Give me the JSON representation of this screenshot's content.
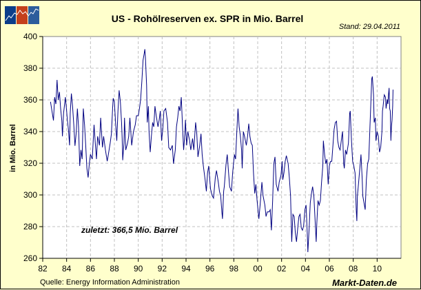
{
  "chart_data": {
    "type": "line",
    "title": "US - Rohölreserven ex. SPR in Mio. Barrel",
    "subtitle": "Stand: 29.04.2011",
    "ylabel": "in Mio. Barrel",
    "xlabel": "",
    "ylim": [
      260,
      400
    ],
    "xlim": [
      1982,
      2012
    ],
    "grid": true,
    "yticks": [
      260,
      280,
      300,
      320,
      340,
      360,
      380,
      400
    ],
    "xticks": [
      {
        "value": 1982,
        "label": "82"
      },
      {
        "value": 1984,
        "label": "84"
      },
      {
        "value": 1986,
        "label": "86"
      },
      {
        "value": 1988,
        "label": "88"
      },
      {
        "value": 1990,
        "label": "90"
      },
      {
        "value": 1992,
        "label": "92"
      },
      {
        "value": 1994,
        "label": "94"
      },
      {
        "value": 1996,
        "label": "96"
      },
      {
        "value": 1998,
        "label": "98"
      },
      {
        "value": 2000,
        "label": "00"
      },
      {
        "value": 2002,
        "label": "02"
      },
      {
        "value": 2004,
        "label": "04"
      },
      {
        "value": 2006,
        "label": "06"
      },
      {
        "value": 2008,
        "label": "08"
      },
      {
        "value": 2010,
        "label": "10"
      }
    ],
    "annotation": "zuletzt: 366,5 Mio. Barrel",
    "source": "Quelle: Energy Information Administration",
    "brand": "Markt-Daten.de",
    "line_color": "#000080",
    "series": [
      {
        "name": "Rohölreserven ex. SPR",
        "points": [
          [
            1982.65,
            358.8
          ],
          [
            1982.8,
            351.6
          ],
          [
            1982.9,
            347
          ],
          [
            1983.0,
            361.7
          ],
          [
            1983.1,
            357.4
          ],
          [
            1983.2,
            372.6
          ],
          [
            1983.3,
            360
          ],
          [
            1983.4,
            365
          ],
          [
            1983.5,
            354.5
          ],
          [
            1983.6,
            347
          ],
          [
            1983.65,
            337
          ],
          [
            1983.75,
            351.7
          ],
          [
            1983.9,
            361.7
          ],
          [
            1984.0,
            353
          ],
          [
            1984.05,
            348.7
          ],
          [
            1984.15,
            341.4
          ],
          [
            1984.25,
            331.3
          ],
          [
            1984.3,
            351.7
          ],
          [
            1984.4,
            364
          ],
          [
            1984.5,
            356
          ],
          [
            1984.6,
            344.3
          ],
          [
            1984.7,
            331
          ],
          [
            1984.8,
            338.6
          ],
          [
            1984.9,
            354.5
          ],
          [
            1985.0,
            343
          ],
          [
            1985.1,
            318.3
          ],
          [
            1985.2,
            328.4
          ],
          [
            1985.3,
            322.6
          ],
          [
            1985.4,
            354.5
          ],
          [
            1985.5,
            344.3
          ],
          [
            1985.6,
            331.3
          ],
          [
            1985.7,
            316.8
          ],
          [
            1985.8,
            311
          ],
          [
            1985.9,
            319.7
          ],
          [
            1986.0,
            325.6
          ],
          [
            1986.15,
            322.6
          ],
          [
            1986.3,
            344.3
          ],
          [
            1986.4,
            332.7
          ],
          [
            1986.5,
            322.6
          ],
          [
            1986.6,
            337
          ],
          [
            1986.75,
            331.3
          ],
          [
            1986.85,
            348.7
          ],
          [
            1987.0,
            330
          ],
          [
            1987.1,
            337
          ],
          [
            1987.25,
            328.4
          ],
          [
            1987.4,
            321.3
          ],
          [
            1987.5,
            325.6
          ],
          [
            1987.65,
            332.7
          ],
          [
            1987.75,
            338.6
          ],
          [
            1987.85,
            354.5
          ],
          [
            1987.9,
            361
          ],
          [
            1988.0,
            358.8
          ],
          [
            1988.1,
            345.8
          ],
          [
            1988.2,
            334.2
          ],
          [
            1988.3,
            353
          ],
          [
            1988.4,
            366
          ],
          [
            1988.5,
            358.8
          ],
          [
            1988.6,
            345.8
          ],
          [
            1988.65,
            335.6
          ],
          [
            1988.7,
            321.9
          ],
          [
            1988.8,
            332.7
          ],
          [
            1988.85,
            348.7
          ],
          [
            1988.95,
            328.4
          ],
          [
            1989.1,
            332.7
          ],
          [
            1989.2,
            337
          ],
          [
            1989.3,
            348.7
          ],
          [
            1989.35,
            343
          ],
          [
            1989.45,
            331.3
          ],
          [
            1989.6,
            340
          ],
          [
            1989.75,
            344.3
          ],
          [
            1989.85,
            350
          ],
          [
            1990.0,
            350
          ],
          [
            1990.1,
            354.5
          ],
          [
            1990.2,
            360.3
          ],
          [
            1990.3,
            371.9
          ],
          [
            1990.4,
            385
          ],
          [
            1990.5,
            389.3
          ],
          [
            1990.55,
            392
          ],
          [
            1990.6,
            386.4
          ],
          [
            1990.7,
            369
          ],
          [
            1990.75,
            345.8
          ],
          [
            1990.85,
            356
          ],
          [
            1990.9,
            340
          ],
          [
            1991.0,
            327
          ],
          [
            1991.1,
            337
          ],
          [
            1991.2,
            345.8
          ],
          [
            1991.3,
            343
          ],
          [
            1991.4,
            356
          ],
          [
            1991.5,
            350
          ],
          [
            1991.65,
            343
          ],
          [
            1991.75,
            347.3
          ],
          [
            1991.85,
            353
          ],
          [
            1991.95,
            334.2
          ],
          [
            1992.05,
            341.4
          ],
          [
            1992.15,
            353
          ],
          [
            1992.3,
            354.5
          ],
          [
            1992.45,
            345.8
          ],
          [
            1992.55,
            329.9
          ],
          [
            1992.7,
            328.4
          ],
          [
            1992.85,
            331.3
          ],
          [
            1992.95,
            319.7
          ],
          [
            1993.1,
            328.4
          ],
          [
            1993.2,
            343
          ],
          [
            1993.3,
            348.7
          ],
          [
            1993.4,
            356
          ],
          [
            1993.5,
            353
          ],
          [
            1993.6,
            361.7
          ],
          [
            1993.7,
            344.3
          ],
          [
            1993.8,
            328.4
          ],
          [
            1993.9,
            338.6
          ],
          [
            1993.95,
            347.3
          ],
          [
            1994.05,
            331.3
          ],
          [
            1994.15,
            340
          ],
          [
            1994.3,
            334.2
          ],
          [
            1994.4,
            328.4
          ],
          [
            1994.55,
            335.6
          ],
          [
            1994.65,
            328.4
          ],
          [
            1994.8,
            345.8
          ],
          [
            1994.9,
            338.6
          ],
          [
            1995.0,
            324
          ],
          [
            1995.15,
            331.3
          ],
          [
            1995.25,
            338.6
          ],
          [
            1995.35,
            325.5
          ],
          [
            1995.45,
            318.3
          ],
          [
            1995.6,
            309.6
          ],
          [
            1995.7,
            302.3
          ],
          [
            1995.8,
            313.9
          ],
          [
            1995.9,
            318.3
          ],
          [
            1996.05,
            303.8
          ],
          [
            1996.2,
            299.4
          ],
          [
            1996.3,
            298
          ],
          [
            1996.45,
            311
          ],
          [
            1996.55,
            315.4
          ],
          [
            1996.7,
            308.1
          ],
          [
            1996.8,
            302.3
          ],
          [
            1996.9,
            299.4
          ],
          [
            1997.0,
            289.3
          ],
          [
            1997.05,
            284.9
          ],
          [
            1997.15,
            302.3
          ],
          [
            1997.2,
            305.2
          ],
          [
            1997.35,
            319.7
          ],
          [
            1997.45,
            325.5
          ],
          [
            1997.55,
            315.4
          ],
          [
            1997.65,
            305.2
          ],
          [
            1997.8,
            302.3
          ],
          [
            1997.9,
            313.9
          ],
          [
            1998.05,
            325.5
          ],
          [
            1998.15,
            322.6
          ],
          [
            1998.25,
            340
          ],
          [
            1998.35,
            354.5
          ],
          [
            1998.45,
            343
          ],
          [
            1998.55,
            337
          ],
          [
            1998.65,
            328.4
          ],
          [
            1998.7,
            316.8
          ],
          [
            1998.8,
            340
          ],
          [
            1998.9,
            337
          ],
          [
            1999.05,
            331.3
          ],
          [
            1999.15,
            337
          ],
          [
            1999.25,
            345
          ],
          [
            1999.35,
            337
          ],
          [
            1999.45,
            332.7
          ],
          [
            1999.55,
            331.3
          ],
          [
            1999.65,
            313.9
          ],
          [
            1999.75,
            300.9
          ],
          [
            1999.85,
            306.7
          ],
          [
            1999.95,
            296.5
          ],
          [
            2000.1,
            284.9
          ],
          [
            2000.2,
            293.6
          ],
          [
            2000.35,
            308.1
          ],
          [
            2000.45,
            299.4
          ],
          [
            2000.6,
            293.6
          ],
          [
            2000.7,
            286.4
          ],
          [
            2000.8,
            289.3
          ],
          [
            2000.95,
            289.3
          ],
          [
            2001.05,
            290.7
          ],
          [
            2001.15,
            277.7
          ],
          [
            2001.25,
            296.5
          ],
          [
            2001.35,
            319.7
          ],
          [
            2001.45,
            324
          ],
          [
            2001.55,
            306.7
          ],
          [
            2001.7,
            302.3
          ],
          [
            2001.8,
            308.1
          ],
          [
            2001.95,
            312.5
          ],
          [
            2002.05,
            321.2
          ],
          [
            2002.1,
            309.6
          ],
          [
            2002.2,
            313.9
          ],
          [
            2002.3,
            321.2
          ],
          [
            2002.4,
            324.8
          ],
          [
            2002.55,
            319.7
          ],
          [
            2002.65,
            311
          ],
          [
            2002.75,
            299.4
          ],
          [
            2002.85,
            270.4
          ],
          [
            2002.95,
            287.8
          ],
          [
            2003.05,
            286.4
          ],
          [
            2003.15,
            276.2
          ],
          [
            2003.25,
            270.4
          ],
          [
            2003.35,
            279.1
          ],
          [
            2003.45,
            286.4
          ],
          [
            2003.55,
            287.8
          ],
          [
            2003.65,
            279.1
          ],
          [
            2003.75,
            277.7
          ],
          [
            2003.85,
            280.6
          ],
          [
            2003.95,
            290.7
          ],
          [
            2004.05,
            293.6
          ],
          [
            2004.15,
            276.2
          ],
          [
            2004.2,
            263.9
          ],
          [
            2004.3,
            277.7
          ],
          [
            2004.4,
            295
          ],
          [
            2004.5,
            300.9
          ],
          [
            2004.6,
            305.2
          ],
          [
            2004.7,
            299.4
          ],
          [
            2004.8,
            284.9
          ],
          [
            2004.9,
            270.4
          ],
          [
            2004.95,
            282
          ],
          [
            2005.05,
            296.5
          ],
          [
            2005.15,
            293.6
          ],
          [
            2005.25,
            296.5
          ],
          [
            2005.35,
            308.1
          ],
          [
            2005.45,
            318.3
          ],
          [
            2005.5,
            334.2
          ],
          [
            2005.6,
            325.5
          ],
          [
            2005.7,
            319.7
          ],
          [
            2005.8,
            322.6
          ],
          [
            2005.9,
            306.7
          ],
          [
            2006.0,
            318.3
          ],
          [
            2006.1,
            321.2
          ],
          [
            2006.2,
            321.2
          ],
          [
            2006.3,
            331.3
          ],
          [
            2006.4,
            341.4
          ],
          [
            2006.5,
            345.8
          ],
          [
            2006.6,
            346.5
          ],
          [
            2006.7,
            334.2
          ],
          [
            2006.8,
            329.9
          ],
          [
            2006.9,
            328.4
          ],
          [
            2007.0,
            334.2
          ],
          [
            2007.1,
            340
          ],
          [
            2007.2,
            319.7
          ],
          [
            2007.25,
            316.8
          ],
          [
            2007.35,
            328.4
          ],
          [
            2007.45,
            325.5
          ],
          [
            2007.6,
            332.7
          ],
          [
            2007.7,
            351.6
          ],
          [
            2007.75,
            353
          ],
          [
            2007.85,
            334.2
          ],
          [
            2007.95,
            321.2
          ],
          [
            2008.05,
            318.3
          ],
          [
            2008.15,
            313.9
          ],
          [
            2008.25,
            290.7
          ],
          [
            2008.3,
            283.5
          ],
          [
            2008.35,
            299.4
          ],
          [
            2008.45,
            308.1
          ],
          [
            2008.55,
            316.8
          ],
          [
            2008.65,
            325.5
          ],
          [
            2008.75,
            309.6
          ],
          [
            2008.8,
            299.4
          ],
          [
            2008.9,
            295
          ],
          [
            2009.0,
            290.7
          ],
          [
            2009.1,
            309.6
          ],
          [
            2009.2,
            319.7
          ],
          [
            2009.3,
            322.6
          ],
          [
            2009.4,
            343
          ],
          [
            2009.45,
            353
          ],
          [
            2009.55,
            373.3
          ],
          [
            2009.6,
            374.8
          ],
          [
            2009.7,
            363.2
          ],
          [
            2009.75,
            345.8
          ],
          [
            2009.85,
            348.7
          ],
          [
            2009.9,
            334.2
          ],
          [
            2010.0,
            340
          ],
          [
            2010.1,
            337
          ],
          [
            2010.2,
            327
          ],
          [
            2010.3,
            329.9
          ],
          [
            2010.4,
            340
          ],
          [
            2010.45,
            353
          ],
          [
            2010.5,
            356
          ],
          [
            2010.6,
            363.2
          ],
          [
            2010.7,
            361.7
          ],
          [
            2010.75,
            354.5
          ],
          [
            2010.85,
            360.3
          ],
          [
            2010.9,
            357.4
          ],
          [
            2010.95,
            363.2
          ],
          [
            2011.0,
            367.5
          ],
          [
            2011.05,
            354.5
          ],
          [
            2011.1,
            353
          ],
          [
            2011.15,
            334.2
          ],
          [
            2011.2,
            343
          ],
          [
            2011.25,
            347.3
          ],
          [
            2011.3,
            356
          ],
          [
            2011.33,
            366.5
          ]
        ]
      }
    ]
  }
}
